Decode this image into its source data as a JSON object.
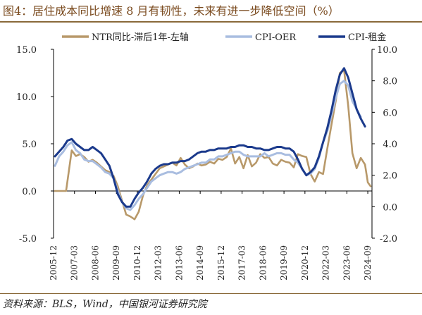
{
  "title": "图4：居住成本同比增速 8 月有韧性，未来有进一步降低空间（%）",
  "source": "资料来源：BLS，Wind，中国银河证券研究院",
  "chart_data": {
    "type": "line",
    "x_labels": [
      "2005-12",
      "2007-03",
      "2008-06",
      "2009-09",
      "2010-12",
      "2012-03",
      "2013-06",
      "2014-09",
      "2015-12",
      "2017-03",
      "2018-06",
      "2019-09",
      "2020-12",
      "2022-03",
      "2023-06",
      "2024-09"
    ],
    "x_range": [
      "2005-12",
      "2024-12"
    ],
    "left_axis": {
      "ylim": [
        -5,
        15
      ],
      "ticks": [
        "-5.0",
        "0.0",
        "5.0",
        "10.0",
        "15.0"
      ]
    },
    "right_axis": {
      "ylim": [
        -2,
        10
      ],
      "ticks": [
        "-2.0",
        "0.0",
        "2.0",
        "4.0",
        "6.0",
        "8.0",
        "10.0"
      ]
    },
    "legend": {
      "position": "top",
      "entries": [
        "NTR同比-滞后1年-左轴",
        "CPI-OER",
        "CPI-租金"
      ]
    },
    "colors": {
      "ntr": "#b8996a",
      "oer": "#a9bde0",
      "rent": "#1b3a8c",
      "axis": "#000000",
      "title": "#7a4a1e"
    },
    "series": [
      {
        "name": "NTR同比-滞后1年-左轴",
        "axis": "left",
        "points": [
          [
            "2006-01",
            0.0
          ],
          [
            "2006-06",
            0.0
          ],
          [
            "2006-09",
            0.0
          ],
          [
            "2007-01",
            4.3
          ],
          [
            "2007-04",
            3.7
          ],
          [
            "2007-07",
            3.9
          ],
          [
            "2007-10",
            3.6
          ],
          [
            "2008-01",
            3.1
          ],
          [
            "2008-04",
            3.3
          ],
          [
            "2008-07",
            3.0
          ],
          [
            "2008-10",
            2.6
          ],
          [
            "2009-01",
            2.2
          ],
          [
            "2009-04",
            2.0
          ],
          [
            "2009-07",
            1.6
          ],
          [
            "2009-10",
            0.5
          ],
          [
            "2010-01",
            -1.0
          ],
          [
            "2010-04",
            -2.5
          ],
          [
            "2010-07",
            -2.7
          ],
          [
            "2010-10",
            -3.0
          ],
          [
            "2011-01",
            -2.2
          ],
          [
            "2011-04",
            -0.5
          ],
          [
            "2011-07",
            0.6
          ],
          [
            "2011-10",
            1.2
          ],
          [
            "2012-01",
            1.8
          ],
          [
            "2012-04",
            2.4
          ],
          [
            "2012-07",
            2.6
          ],
          [
            "2012-10",
            2.8
          ],
          [
            "2013-01",
            3.0
          ],
          [
            "2013-04",
            2.7
          ],
          [
            "2013-07",
            3.5
          ],
          [
            "2013-10",
            2.8
          ],
          [
            "2014-01",
            2.4
          ],
          [
            "2014-04",
            2.6
          ],
          [
            "2014-07",
            2.9
          ],
          [
            "2014-10",
            2.7
          ],
          [
            "2015-01",
            2.8
          ],
          [
            "2015-04",
            3.1
          ],
          [
            "2015-07",
            2.9
          ],
          [
            "2015-10",
            3.4
          ],
          [
            "2016-01",
            3.3
          ],
          [
            "2016-04",
            3.6
          ],
          [
            "2016-07",
            4.5
          ],
          [
            "2016-10",
            2.9
          ],
          [
            "2017-01",
            3.6
          ],
          [
            "2017-04",
            2.4
          ],
          [
            "2017-07",
            3.8
          ],
          [
            "2017-10",
            2.6
          ],
          [
            "2018-01",
            3.0
          ],
          [
            "2018-04",
            3.9
          ],
          [
            "2018-07",
            3.5
          ],
          [
            "2018-10",
            3.6
          ],
          [
            "2019-01",
            2.9
          ],
          [
            "2019-04",
            2.7
          ],
          [
            "2019-07",
            3.3
          ],
          [
            "2019-10",
            3.1
          ],
          [
            "2020-01",
            3.0
          ],
          [
            "2020-04",
            2.5
          ],
          [
            "2020-07",
            3.9
          ],
          [
            "2020-10",
            3.7
          ],
          [
            "2021-01",
            3.6
          ],
          [
            "2021-04",
            1.8
          ],
          [
            "2021-07",
            1.0
          ],
          [
            "2021-10",
            2.0
          ],
          [
            "2022-01",
            1.8
          ],
          [
            "2022-04",
            4.5
          ],
          [
            "2022-07",
            7.0
          ],
          [
            "2022-10",
            9.5
          ],
          [
            "2023-01",
            12.5
          ],
          [
            "2023-04",
            12.8
          ],
          [
            "2023-07",
            9.0
          ],
          [
            "2023-10",
            4.0
          ],
          [
            "2024-01",
            2.4
          ],
          [
            "2024-04",
            3.5
          ],
          [
            "2024-07",
            2.8
          ],
          [
            "2024-09",
            0.9
          ],
          [
            "2024-11",
            0.5
          ]
        ]
      },
      {
        "name": "CPI-OER",
        "axis": "right",
        "points": [
          [
            "2006-01",
            2.6
          ],
          [
            "2006-04",
            3.2
          ],
          [
            "2006-07",
            3.5
          ],
          [
            "2006-10",
            3.9
          ],
          [
            "2007-01",
            4.1
          ],
          [
            "2007-04",
            3.6
          ],
          [
            "2007-07",
            3.4
          ],
          [
            "2007-10",
            3.0
          ],
          [
            "2008-01",
            2.9
          ],
          [
            "2008-04",
            2.9
          ],
          [
            "2008-07",
            2.7
          ],
          [
            "2008-10",
            2.5
          ],
          [
            "2009-01",
            2.2
          ],
          [
            "2009-04",
            2.1
          ],
          [
            "2009-07",
            1.8
          ],
          [
            "2009-10",
            1.0
          ],
          [
            "2010-01",
            0.3
          ],
          [
            "2010-04",
            -0.1
          ],
          [
            "2010-07",
            -0.2
          ],
          [
            "2010-10",
            0.1
          ],
          [
            "2011-01",
            0.5
          ],
          [
            "2011-04",
            0.8
          ],
          [
            "2011-07",
            1.2
          ],
          [
            "2011-10",
            1.6
          ],
          [
            "2012-01",
            1.8
          ],
          [
            "2012-04",
            2.0
          ],
          [
            "2012-07",
            2.1
          ],
          [
            "2012-10",
            2.2
          ],
          [
            "2013-01",
            2.2
          ],
          [
            "2013-04",
            2.1
          ],
          [
            "2013-07",
            2.2
          ],
          [
            "2013-10",
            2.4
          ],
          [
            "2014-01",
            2.5
          ],
          [
            "2014-04",
            2.6
          ],
          [
            "2014-07",
            2.7
          ],
          [
            "2014-10",
            2.8
          ],
          [
            "2015-01",
            2.8
          ],
          [
            "2015-04",
            3.0
          ],
          [
            "2015-07",
            3.0
          ],
          [
            "2015-10",
            3.2
          ],
          [
            "2016-01",
            3.2
          ],
          [
            "2016-04",
            3.3
          ],
          [
            "2016-07",
            3.4
          ],
          [
            "2016-10",
            3.5
          ],
          [
            "2017-01",
            3.5
          ],
          [
            "2017-04",
            3.3
          ],
          [
            "2017-07",
            3.2
          ],
          [
            "2017-10",
            3.2
          ],
          [
            "2018-01",
            3.2
          ],
          [
            "2018-04",
            3.2
          ],
          [
            "2018-07",
            3.4
          ],
          [
            "2018-10",
            3.2
          ],
          [
            "2019-01",
            3.3
          ],
          [
            "2019-04",
            3.4
          ],
          [
            "2019-07",
            3.4
          ],
          [
            "2019-10",
            3.3
          ],
          [
            "2020-01",
            3.3
          ],
          [
            "2020-04",
            3.0
          ],
          [
            "2020-07",
            2.8
          ],
          [
            "2020-10",
            2.4
          ],
          [
            "2021-01",
            2.0
          ],
          [
            "2021-04",
            2.1
          ],
          [
            "2021-07",
            2.4
          ],
          [
            "2021-10",
            3.1
          ],
          [
            "2022-01",
            4.1
          ],
          [
            "2022-04",
            4.8
          ],
          [
            "2022-07",
            5.8
          ],
          [
            "2022-10",
            6.9
          ],
          [
            "2023-01",
            7.8
          ],
          [
            "2023-04",
            8.0
          ],
          [
            "2023-07",
            7.7
          ],
          [
            "2023-10",
            6.7
          ],
          [
            "2024-01",
            6.2
          ],
          [
            "2024-04",
            5.7
          ]
        ]
      },
      {
        "name": "CPI-租金",
        "axis": "right",
        "points": [
          [
            "2006-01",
            3.2
          ],
          [
            "2006-04",
            3.5
          ],
          [
            "2006-07",
            3.8
          ],
          [
            "2006-10",
            4.2
          ],
          [
            "2007-01",
            4.3
          ],
          [
            "2007-04",
            4.0
          ],
          [
            "2007-07",
            3.8
          ],
          [
            "2007-10",
            3.6
          ],
          [
            "2008-01",
            3.6
          ],
          [
            "2008-04",
            3.8
          ],
          [
            "2008-07",
            3.6
          ],
          [
            "2008-10",
            3.4
          ],
          [
            "2009-01",
            3.0
          ],
          [
            "2009-04",
            2.6
          ],
          [
            "2009-07",
            1.8
          ],
          [
            "2009-10",
            0.8
          ],
          [
            "2010-01",
            0.3
          ],
          [
            "2010-04",
            0.0
          ],
          [
            "2010-07",
            0.0
          ],
          [
            "2010-10",
            0.5
          ],
          [
            "2011-01",
            0.9
          ],
          [
            "2011-04",
            1.2
          ],
          [
            "2011-07",
            1.6
          ],
          [
            "2011-10",
            2.1
          ],
          [
            "2012-01",
            2.4
          ],
          [
            "2012-04",
            2.6
          ],
          [
            "2012-07",
            2.7
          ],
          [
            "2012-10",
            2.7
          ],
          [
            "2013-01",
            2.8
          ],
          [
            "2013-04",
            2.8
          ],
          [
            "2013-07",
            2.9
          ],
          [
            "2013-10",
            2.9
          ],
          [
            "2014-01",
            3.0
          ],
          [
            "2014-04",
            3.2
          ],
          [
            "2014-07",
            3.4
          ],
          [
            "2014-10",
            3.5
          ],
          [
            "2015-01",
            3.5
          ],
          [
            "2015-04",
            3.6
          ],
          [
            "2015-07",
            3.6
          ],
          [
            "2015-10",
            3.7
          ],
          [
            "2016-01",
            3.7
          ],
          [
            "2016-04",
            3.7
          ],
          [
            "2016-07",
            3.8
          ],
          [
            "2016-10",
            3.8
          ],
          [
            "2017-01",
            3.9
          ],
          [
            "2017-04",
            3.9
          ],
          [
            "2017-07",
            3.8
          ],
          [
            "2017-10",
            3.8
          ],
          [
            "2018-01",
            3.7
          ],
          [
            "2018-04",
            3.7
          ],
          [
            "2018-07",
            3.6
          ],
          [
            "2018-10",
            3.6
          ],
          [
            "2019-01",
            3.7
          ],
          [
            "2019-04",
            3.8
          ],
          [
            "2019-07",
            3.8
          ],
          [
            "2019-10",
            3.7
          ],
          [
            "2020-01",
            3.7
          ],
          [
            "2020-04",
            3.5
          ],
          [
            "2020-07",
            3.0
          ],
          [
            "2020-10",
            2.4
          ],
          [
            "2021-01",
            2.0
          ],
          [
            "2021-04",
            2.2
          ],
          [
            "2021-07",
            2.5
          ],
          [
            "2021-10",
            3.2
          ],
          [
            "2022-01",
            4.1
          ],
          [
            "2022-04",
            5.0
          ],
          [
            "2022-07",
            6.1
          ],
          [
            "2022-10",
            7.4
          ],
          [
            "2023-01",
            8.4
          ],
          [
            "2023-04",
            8.8
          ],
          [
            "2023-07",
            8.2
          ],
          [
            "2023-10",
            7.2
          ],
          [
            "2024-01",
            6.2
          ],
          [
            "2024-04",
            5.6
          ],
          [
            "2024-07",
            5.1
          ]
        ]
      }
    ]
  }
}
